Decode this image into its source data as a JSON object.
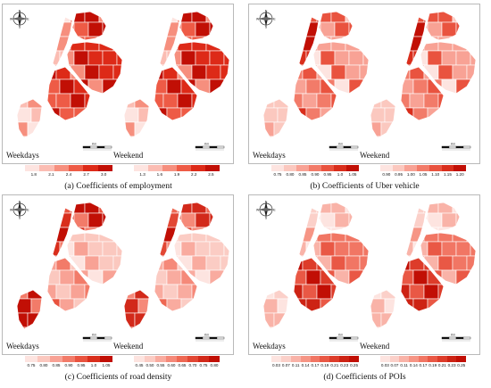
{
  "panels": [
    {
      "caption": "(a) Coefficients of employment",
      "left_map": {
        "period": "Weekdays",
        "shading": "dense_east"
      },
      "right_map": {
        "period": "Weekend",
        "shading": "dense_east"
      },
      "left_legend": {
        "labels": [
          "1.8",
          "2.1",
          "2.4",
          "2.7",
          "3.0"
        ],
        "colors": [
          "#fde4e0",
          "#fbbdb3",
          "#f68f7e",
          "#ee5b46",
          "#dd2a18",
          "#c10f05"
        ]
      },
      "right_legend": {
        "labels": [
          "1.3",
          "1.6",
          "1.9",
          "2.2",
          "2.5"
        ],
        "colors": [
          "#fde4e0",
          "#fbbdb3",
          "#f68f7e",
          "#ee5b46",
          "#dd2a18",
          "#c10f05"
        ]
      }
    },
    {
      "caption": "(b) Coefficients of Uber vehicle",
      "left_map": {
        "period": "Weekdays",
        "shading": "dense_manhattan"
      },
      "right_map": {
        "period": "Weekend",
        "shading": "dense_manhattan"
      },
      "left_legend": {
        "labels": [
          "0.75",
          "0.80",
          "0.85",
          "0.90",
          "0.95",
          "1.0",
          "1.05"
        ],
        "colors": [
          "#fde4e0",
          "#fbc8bf",
          "#f8a295",
          "#f27b69",
          "#e9533f",
          "#d92e1c",
          "#c10f05"
        ]
      },
      "right_legend": {
        "labels": [
          "0.90",
          "0.95",
          "1.00",
          "1.05",
          "1.10",
          "1.15",
          "1.20"
        ],
        "colors": [
          "#fde4e0",
          "#fbc8bf",
          "#f8a295",
          "#f27b69",
          "#e9533f",
          "#d92e1c",
          "#c10f05"
        ]
      }
    },
    {
      "caption": "(c) Coefficients of road density",
      "left_map": {
        "period": "Weekdays",
        "shading": "dense_edges"
      },
      "right_map": {
        "period": "Weekend",
        "shading": "dense_edges"
      },
      "left_legend": {
        "labels": [
          "0.75",
          "0.80",
          "0.85",
          "0.90",
          "0.95",
          "1.0",
          "1.05"
        ],
        "colors": [
          "#fde4e0",
          "#fbc8bf",
          "#f8a295",
          "#f27b69",
          "#e9533f",
          "#d92e1c",
          "#c10f05"
        ]
      },
      "right_legend": {
        "labels": [
          "0.45",
          "0.50",
          "0.55",
          "0.60",
          "0.65",
          "0.70",
          "0.75",
          "0.80"
        ],
        "colors": [
          "#fde4e0",
          "#fbccc4",
          "#f9ab9f",
          "#f58979",
          "#ee6853",
          "#e24734",
          "#d2291a",
          "#c10f05"
        ]
      }
    },
    {
      "caption": "(d) Coefficients of POIs",
      "left_map": {
        "period": "Weekdays",
        "shading": "dense_south"
      },
      "right_map": {
        "period": "Weekend",
        "shading": "dense_south"
      },
      "left_legend": {
        "labels": [
          "0.03",
          "0.07",
          "0.11",
          "0.14",
          "0.17",
          "0.19",
          "0.21",
          "0.23",
          "0.25"
        ],
        "colors": [
          "#fde4e0",
          "#fbd0c9",
          "#f9b3a8",
          "#f69585",
          "#f17664",
          "#e95845",
          "#dd3c2a",
          "#cd2314",
          "#c10f05"
        ]
      },
      "right_legend": {
        "labels": [
          "0.03",
          "0.07",
          "0.11",
          "0.14",
          "0.17",
          "0.19",
          "0.21",
          "0.23",
          "0.25"
        ],
        "colors": [
          "#fde4e0",
          "#fbd0c9",
          "#f9b3a8",
          "#f69585",
          "#f17664",
          "#e95845",
          "#dd3c2a",
          "#cd2314",
          "#c10f05"
        ]
      }
    }
  ],
  "compass_letters": [
    "N",
    "E",
    "S",
    "W"
  ],
  "scale_unit": "Km"
}
